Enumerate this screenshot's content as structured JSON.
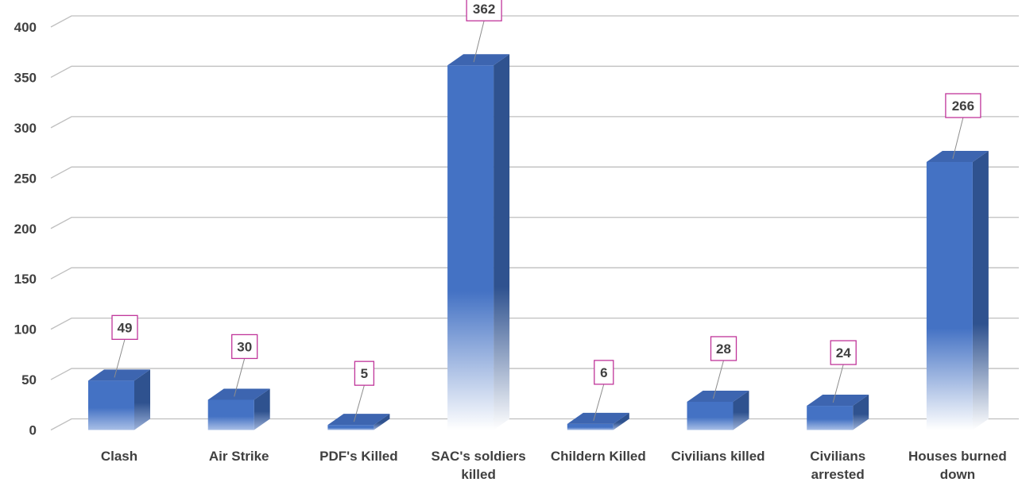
{
  "chart_data": {
    "type": "bar",
    "style": "3d-column",
    "categories": [
      "Clash",
      "Air Strike",
      "PDF's Killed",
      "SAC's soldiers killed",
      "Childern Killed",
      "Civilians killed",
      "Civilians arrested",
      "Houses burned down"
    ],
    "category_lines": [
      [
        "Clash"
      ],
      [
        "Air Strike"
      ],
      [
        "PDF's Killed"
      ],
      [
        "SAC's soldiers",
        "killed"
      ],
      [
        "Childern Killed"
      ],
      [
        "Civilians killed"
      ],
      [
        "Civilians",
        "arrested"
      ],
      [
        "Houses burned",
        "down"
      ]
    ],
    "values": [
      49,
      30,
      5,
      362,
      6,
      28,
      24,
      266
    ],
    "data_labels": [
      "49",
      "30",
      "5",
      "362",
      "6",
      "28",
      "24",
      "266"
    ],
    "ylim": [
      0,
      400
    ],
    "yticks": [
      0,
      50,
      100,
      150,
      200,
      250,
      300,
      350,
      400
    ],
    "ytick_labels": [
      "0",
      "50",
      "100",
      "150",
      "200",
      "250",
      "300",
      "350",
      "400"
    ],
    "grid": true,
    "legend": "none",
    "colors": {
      "bar_front": "#4472c4",
      "bar_side": "#2f528f",
      "bar_top": "#3d65b0",
      "gridline": "#bfbfbf",
      "label_border": "#c0359a",
      "text": "#404040"
    }
  }
}
